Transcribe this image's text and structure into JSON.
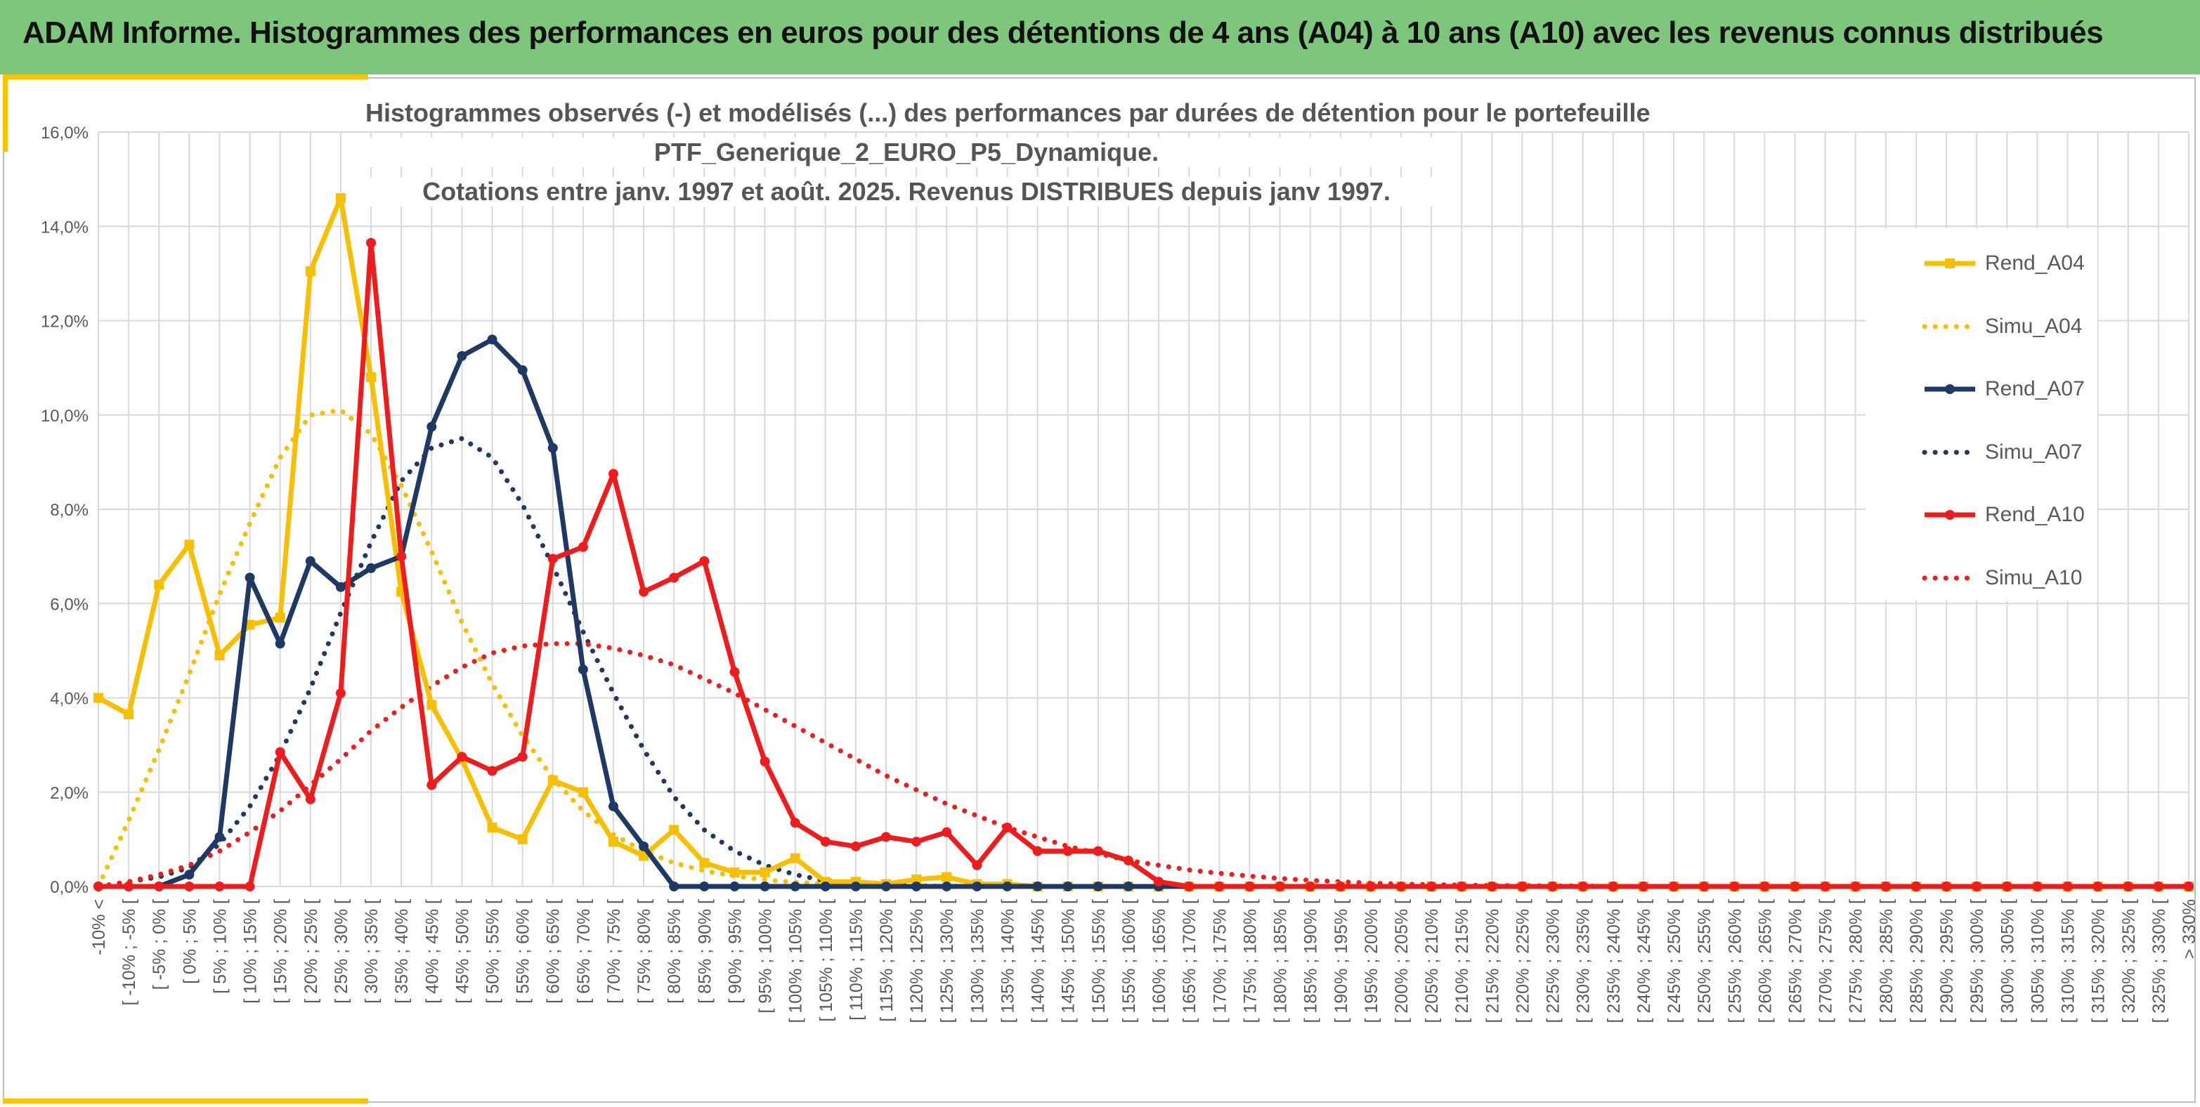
{
  "header": {
    "title": "ADAM Informe. Histogrammes des performances en euros pour des détentions de 4 ans (A04) à 10 ans (A10) avec les revenus connus distribués"
  },
  "colors": {
    "banner": "#7dc67b",
    "accent": "#f6c400",
    "A04": "#f6c000",
    "A07": "#1f3864",
    "A10": "#ee1c1c",
    "grid": "#d9d9d9"
  },
  "chart_data": {
    "type": "line",
    "title_lines": [
      "Histogrammes observés (-) et modélisés (...) des performances par durées de détention pour le portefeuille",
      "PTF_Generique_2_EURO_P5_Dynamique.",
      "Cotations entre janv. 1997 et août. 2025. Revenus DISTRIBUES depuis janv 1997."
    ],
    "y_ticks": [
      "0,0%",
      "2,0%",
      "4,0%",
      "6,0%",
      "8,0%",
      "10,0%",
      "12,0%",
      "14,0%",
      "16,0%"
    ],
    "ylim": [
      0,
      16
    ],
    "y_unit": "%",
    "grid": true,
    "legend_position": "right",
    "categories": [
      "-10% <",
      "[ -10% ; -5% [",
      "[ -5% ; 0% [",
      "[ 0% ; 5% [",
      "[ 5% ; 10% [",
      "[ 10% ; 15% [",
      "[ 15% ; 20% [",
      "[ 20% ; 25% [",
      "[ 25% ; 30% [",
      "[ 30% ; 35% [",
      "[ 35% ; 40% [",
      "[ 40% ; 45% [",
      "[ 45% ; 50% [",
      "[ 50% ; 55% [",
      "[ 55% ; 60% [",
      "[ 60% ; 65% [",
      "[ 65% ; 70% [",
      "[ 70% ; 75% [",
      "[ 75% ; 80% [",
      "[ 80% ; 85% [",
      "[ 85% ; 90% [",
      "[ 90% ; 95% [",
      "[ 95% ; 100% [",
      "[ 100% ; 105% [",
      "[ 105% ; 110% [",
      "[ 110% ; 115% [",
      "[ 115% ; 120% [",
      "[ 120% ; 125% [",
      "[ 125% ; 130% [",
      "[ 130% ; 135% [",
      "[ 135% ; 140% [",
      "[ 140% ; 145% [",
      "[ 145% ; 150% [",
      "[ 150% ; 155% [",
      "[ 155% ; 160% [",
      "[ 160% ; 165% [",
      "[ 165% ; 170% [",
      "[ 170% ; 175% [",
      "[ 175% ; 180% [",
      "[ 180% ; 185% [",
      "[ 185% ; 190% [",
      "[ 190% ; 195% [",
      "[ 195% ; 200% [",
      "[ 200% ; 205% [",
      "[ 205% ; 210% [",
      "[ 210% ; 215% [",
      "[ 215% ; 220% [",
      "[ 220% ; 225% [",
      "[ 225% ; 230% [",
      "[ 230% ; 235% [",
      "[ 235% ; 240% [",
      "[ 240% ; 245% [",
      "[ 245% ; 250% [",
      "[ 250% ; 255% [",
      "[ 255% ; 260% [",
      "[ 260% ; 265% [",
      "[ 265% ; 270% [",
      "[ 270% ; 275% [",
      "[ 275% ; 280% [",
      "[ 280% ; 285% [",
      "[ 285% ; 290% [",
      "[ 290% ; 295% [",
      "[ 295% ; 300% [",
      "[ 300% ; 305% [",
      "[ 305% ; 310% [",
      "[ 310% ; 315% [",
      "[ 315% ; 320% [",
      "[ 320% ; 325% [",
      "[ 325% ; 330% [",
      "> 330%"
    ],
    "series": [
      {
        "name": "Rend_A04",
        "style": "solid-square",
        "color": "#f6c000",
        "values": [
          4.0,
          3.65,
          6.4,
          7.25,
          4.9,
          5.55,
          5.7,
          13.05,
          14.6,
          10.8,
          6.25,
          3.85,
          2.7,
          1.25,
          1.0,
          2.25,
          2.0,
          0.95,
          0.65,
          1.2,
          0.5,
          0.3,
          0.3,
          0.6,
          0.1,
          0.1,
          0.05,
          0.15,
          0.2,
          0.05,
          0.05,
          0.0,
          0.0,
          0.0,
          0.0,
          0.0,
          0.0,
          0.0,
          0.0,
          0.0,
          0.0,
          0.0,
          0.0,
          0.0,
          0.0,
          0.0,
          0.0,
          0.0,
          0.0,
          0.0,
          0.0,
          0.0,
          0.0,
          0.0,
          0.0,
          0.0,
          0.0,
          0.0,
          0.0,
          0.0,
          0.0,
          0.0,
          0.0,
          0.0,
          0.0,
          0.0,
          0.0,
          0.0,
          0.0,
          0.0
        ]
      },
      {
        "name": "Simu_A04",
        "style": "dotted",
        "color": "#f6c000",
        "values": [
          0.0,
          1.4,
          2.9,
          4.5,
          6.2,
          7.7,
          9.1,
          10.0,
          10.1,
          9.6,
          8.5,
          7.1,
          5.6,
          4.3,
          3.2,
          2.3,
          1.6,
          1.1,
          0.75,
          0.5,
          0.33,
          0.22,
          0.14,
          0.09,
          0.06,
          0.04,
          0.02,
          0.01,
          0.01,
          0.0,
          0.0,
          0.0,
          0.0,
          0.0,
          0.0,
          0.0,
          0.0,
          0.0,
          0.0,
          0.0,
          0.0,
          0.0,
          0.0,
          0.0,
          0.0,
          0.0,
          0.0,
          0.0,
          0.0,
          0.0,
          0.0,
          0.0,
          0.0,
          0.0,
          0.0,
          0.0,
          0.0,
          0.0,
          0.0,
          0.0,
          0.0,
          0.0,
          0.0,
          0.0,
          0.0,
          0.0,
          0.0,
          0.0,
          0.0,
          0.0
        ]
      },
      {
        "name": "Rend_A07",
        "style": "solid-circle",
        "color": "#1f3864",
        "values": [
          0.0,
          0.0,
          0.0,
          0.25,
          1.05,
          6.55,
          5.15,
          6.9,
          6.35,
          6.75,
          7.0,
          9.75,
          11.25,
          11.6,
          10.95,
          9.3,
          4.6,
          1.7,
          0.85,
          0.0,
          0.0,
          0.0,
          0.0,
          0.0,
          0.0,
          0.0,
          0.0,
          0.0,
          0.0,
          0.0,
          0.0,
          0.0,
          0.0,
          0.0,
          0.0,
          0.0,
          0.0,
          0.0,
          0.0,
          0.0,
          0.0,
          0.0,
          0.0,
          0.0,
          0.0,
          0.0,
          0.0,
          0.0,
          0.0,
          0.0,
          0.0,
          0.0,
          0.0,
          0.0,
          0.0,
          0.0,
          0.0,
          0.0,
          0.0,
          0.0,
          0.0,
          0.0,
          0.0,
          0.0,
          0.0,
          0.0,
          0.0,
          0.0,
          0.0,
          0.0
        ]
      },
      {
        "name": "Simu_A07",
        "style": "dotted",
        "color": "#1f3864",
        "values": [
          0.0,
          0.1,
          0.2,
          0.4,
          0.9,
          1.7,
          2.8,
          4.2,
          5.8,
          7.3,
          8.6,
          9.3,
          9.5,
          9.1,
          8.1,
          6.8,
          5.4,
          4.1,
          2.9,
          1.9,
          1.2,
          0.75,
          0.45,
          0.25,
          0.12,
          0.06,
          0.03,
          0.01,
          0.0,
          0.0,
          0.0,
          0.0,
          0.0,
          0.0,
          0.0,
          0.0,
          0.0,
          0.0,
          0.0,
          0.0,
          0.0,
          0.0,
          0.0,
          0.0,
          0.0,
          0.0,
          0.0,
          0.0,
          0.0,
          0.0,
          0.0,
          0.0,
          0.0,
          0.0,
          0.0,
          0.0,
          0.0,
          0.0,
          0.0,
          0.0,
          0.0,
          0.0,
          0.0,
          0.0,
          0.0,
          0.0,
          0.0,
          0.0,
          0.0,
          0.0
        ]
      },
      {
        "name": "Rend_A10",
        "style": "solid-circle",
        "color": "#ee1c1c",
        "values": [
          0.0,
          0.0,
          0.0,
          0.0,
          0.0,
          0.0,
          2.85,
          1.85,
          4.1,
          13.65,
          7.0,
          2.15,
          2.75,
          2.45,
          2.75,
          6.95,
          7.2,
          8.75,
          6.25,
          6.55,
          6.9,
          4.55,
          2.65,
          1.35,
          0.95,
          0.85,
          1.05,
          0.95,
          1.15,
          0.45,
          1.25,
          0.75,
          0.75,
          0.75,
          0.55,
          0.1,
          0.0,
          0.0,
          0.0,
          0.0,
          0.0,
          0.0,
          0.0,
          0.0,
          0.0,
          0.0,
          0.0,
          0.0,
          0.0,
          0.0,
          0.0,
          0.0,
          0.0,
          0.0,
          0.0,
          0.0,
          0.0,
          0.0,
          0.0,
          0.0,
          0.0,
          0.0,
          0.0,
          0.0,
          0.0,
          0.0,
          0.0,
          0.0,
          0.0,
          0.0
        ]
      },
      {
        "name": "Simu_A10",
        "style": "dotted",
        "color": "#ee1c1c",
        "values": [
          0.0,
          0.1,
          0.25,
          0.45,
          0.75,
          1.15,
          1.6,
          2.15,
          2.7,
          3.3,
          3.8,
          4.25,
          4.65,
          4.95,
          5.1,
          5.15,
          5.15,
          5.05,
          4.9,
          4.7,
          4.4,
          4.1,
          3.75,
          3.4,
          3.05,
          2.7,
          2.35,
          2.05,
          1.75,
          1.5,
          1.25,
          1.05,
          0.85,
          0.7,
          0.55,
          0.45,
          0.35,
          0.28,
          0.22,
          0.17,
          0.13,
          0.1,
          0.07,
          0.05,
          0.04,
          0.03,
          0.02,
          0.02,
          0.01,
          0.01,
          0.0,
          0.0,
          0.0,
          0.0,
          0.0,
          0.0,
          0.0,
          0.0,
          0.0,
          0.0,
          0.0,
          0.0,
          0.0,
          0.0,
          0.0,
          0.0,
          0.0,
          0.0,
          0.0,
          0.0
        ]
      }
    ]
  }
}
